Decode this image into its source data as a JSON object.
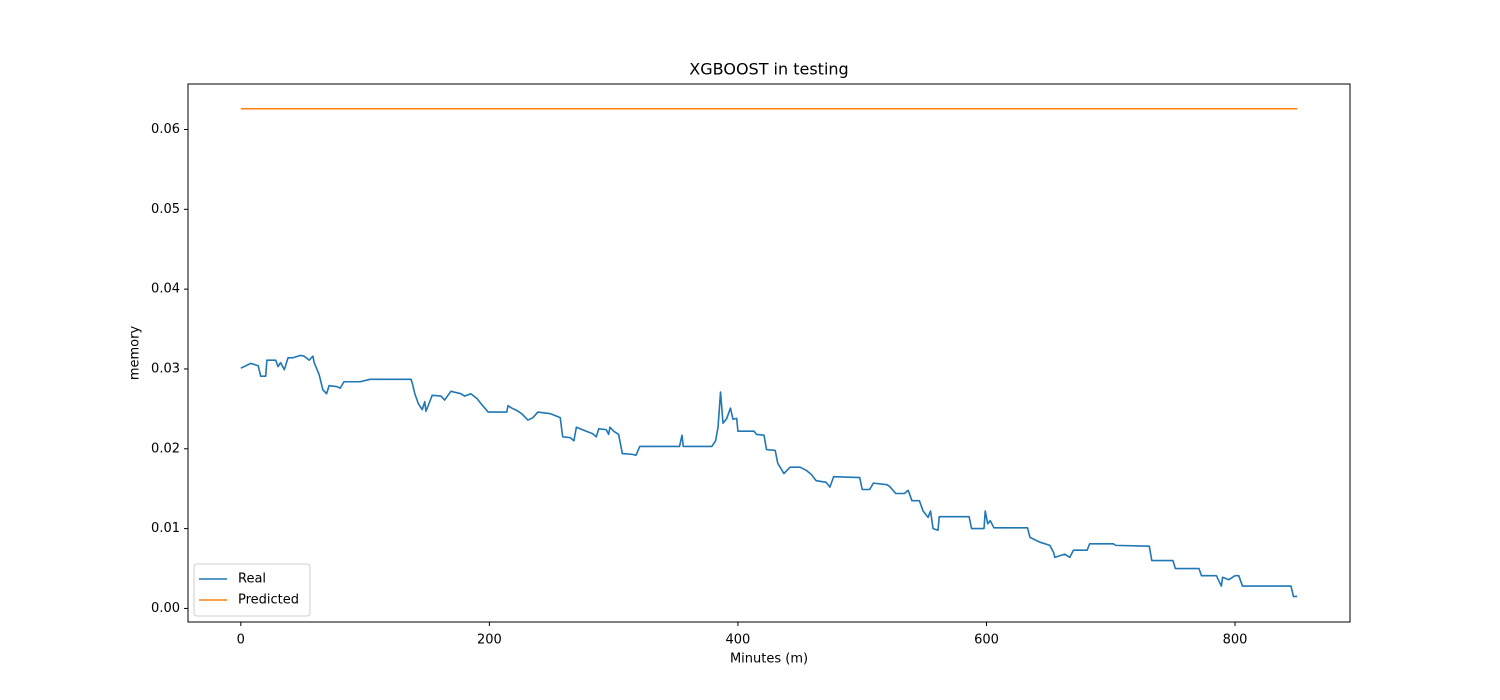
{
  "chart_data": {
    "type": "line",
    "title": "XGBOOST in testing",
    "xlabel": "Minutes (m)",
    "ylabel": "memory",
    "xlim": [
      -42.5,
      892.5
    ],
    "ylim": [
      -0.0017,
      0.0657
    ],
    "xticks": [
      0,
      200,
      400,
      600,
      800
    ],
    "yticks": [
      {
        "value": 0,
        "label": "0.00"
      },
      0.01,
      0.02,
      0.03,
      0.04,
      0.05,
      0.06
    ],
    "legend": "lower left",
    "grid": false,
    "series": [
      {
        "name": "Real",
        "color": "#1f77b4",
        "x": [
          0,
          8,
          14,
          16,
          20,
          21,
          28,
          30,
          32,
          35,
          38,
          42,
          48,
          51,
          55,
          58,
          59,
          63,
          66,
          69,
          71,
          77,
          80,
          83,
          96,
          104,
          137,
          138,
          140,
          143,
          146,
          148,
          149,
          153,
          154,
          161,
          164,
          169,
          177,
          180,
          185,
          190,
          193,
          199,
          214,
          215,
          218,
          222,
          226,
          231,
          235,
          239,
          249,
          257,
          259,
          265,
          268,
          270,
          278,
          283,
          286,
          288,
          294,
          296,
          297,
          300,
          304,
          307,
          315,
          318,
          321,
          353,
          355,
          356,
          379,
          382,
          384,
          386,
          388,
          391,
          394,
          396,
          399,
          400,
          413,
          415,
          421,
          423,
          430,
          432,
          437,
          442,
          450,
          455,
          459,
          463,
          471,
          474,
          477,
          498,
          500,
          506,
          509,
          520,
          522,
          527,
          534,
          537,
          540,
          546,
          549,
          553,
          555,
          557,
          561,
          562,
          586,
          588,
          598,
          599,
          601,
          603,
          606,
          633,
          635,
          643,
          651,
          654,
          655,
          663,
          667,
          670,
          681,
          683,
          702,
          704,
          731,
          733,
          750,
          752,
          771,
          773,
          785,
          789,
          790,
          795,
          800,
          803,
          806,
          845,
          847,
          850
        ],
        "values": [
          0.0301,
          0.0307,
          0.0304,
          0.0291,
          0.0291,
          0.0311,
          0.0311,
          0.0303,
          0.0308,
          0.0299,
          0.0314,
          0.0314,
          0.0317,
          0.0316,
          0.0311,
          0.0316,
          0.0308,
          0.0293,
          0.0274,
          0.0269,
          0.0279,
          0.0278,
          0.0276,
          0.0284,
          0.0284,
          0.0287,
          0.0287,
          0.0282,
          0.0269,
          0.0256,
          0.0249,
          0.0259,
          0.0247,
          0.0263,
          0.0267,
          0.0266,
          0.0261,
          0.0272,
          0.0269,
          0.0266,
          0.0269,
          0.0263,
          0.0257,
          0.0246,
          0.0246,
          0.0254,
          0.0251,
          0.0248,
          0.0244,
          0.0236,
          0.0239,
          0.0246,
          0.0244,
          0.0239,
          0.0215,
          0.0214,
          0.021,
          0.0227,
          0.0222,
          0.0219,
          0.0215,
          0.0225,
          0.0224,
          0.0218,
          0.0227,
          0.0222,
          0.0218,
          0.0194,
          0.0193,
          0.0192,
          0.0203,
          0.0203,
          0.0217,
          0.0203,
          0.0203,
          0.021,
          0.0227,
          0.0271,
          0.0232,
          0.0238,
          0.0251,
          0.0237,
          0.0238,
          0.0222,
          0.0222,
          0.0218,
          0.0217,
          0.0199,
          0.0198,
          0.0182,
          0.0169,
          0.0177,
          0.0177,
          0.0173,
          0.0168,
          0.016,
          0.0158,
          0.0152,
          0.0165,
          0.0164,
          0.0149,
          0.0149,
          0.0157,
          0.0155,
          0.0153,
          0.0144,
          0.0144,
          0.0148,
          0.0135,
          0.0135,
          0.0122,
          0.0114,
          0.0122,
          0.01,
          0.0098,
          0.0115,
          0.0115,
          0.01,
          0.01,
          0.0122,
          0.0106,
          0.011,
          0.0101,
          0.0101,
          0.0089,
          0.0083,
          0.0079,
          0.007,
          0.0064,
          0.0068,
          0.0064,
          0.0073,
          0.0073,
          0.0081,
          0.0081,
          0.0079,
          0.0078,
          0.006,
          0.006,
          0.005,
          0.005,
          0.0041,
          0.0041,
          0.0028,
          0.0039,
          0.0036,
          0.0041,
          0.0041,
          0.0028,
          0.0028,
          0.0015,
          0.0015
        ]
      },
      {
        "name": "Predicted",
        "color": "#ff7f0e",
        "x": [
          0,
          850
        ],
        "values": [
          0.0626,
          0.0626
        ]
      }
    ]
  }
}
